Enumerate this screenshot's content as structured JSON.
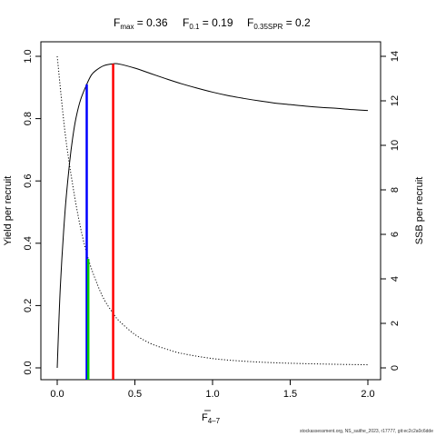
{
  "chart_data": {
    "type": "line",
    "title": {
      "fmax": {
        "base": "F",
        "sub": "max",
        "value": " = 0.36"
      },
      "f01": {
        "base": "F",
        "sub": "0.1",
        "value": " = 0.19"
      },
      "f035": {
        "base": "F",
        "sub": "0.35SPR",
        "value": " = 0.2"
      }
    },
    "xlabel": {
      "base": "F",
      "sub": "4–7"
    },
    "ylabel_left": "Yield per recruit",
    "ylabel_right": "SSB per recruit",
    "xlim": [
      0,
      2
    ],
    "ylim_left": [
      0,
      1
    ],
    "ylim_right": [
      0,
      14
    ],
    "x_ticks": [
      {
        "value": 0,
        "label": "0.0"
      },
      {
        "value": 0.5,
        "label": "0.5"
      },
      {
        "value": 1,
        "label": "1.0"
      },
      {
        "value": 1.5,
        "label": "1.5"
      },
      {
        "value": 2,
        "label": "2.0"
      }
    ],
    "y_ticks_left": [
      {
        "value": 0,
        "label": "0.0"
      },
      {
        "value": 0.2,
        "label": "0.2"
      },
      {
        "value": 0.4,
        "label": "0.4"
      },
      {
        "value": 0.6,
        "label": "0.6"
      },
      {
        "value": 0.8,
        "label": "0.8"
      },
      {
        "value": 1,
        "label": "1.0"
      }
    ],
    "y_ticks_right": [
      {
        "value": 0,
        "label": "0"
      },
      {
        "value": 2,
        "label": "2"
      },
      {
        "value": 4,
        "label": "4"
      },
      {
        "value": 6,
        "label": "6"
      },
      {
        "value": 8,
        "label": "8"
      },
      {
        "value": 10,
        "label": "10"
      },
      {
        "value": 12,
        "label": "12"
      },
      {
        "value": 14,
        "label": "14"
      }
    ],
    "series": [
      {
        "axis": "left",
        "style": "solid",
        "color": "#000000",
        "x": [
          0,
          0.02,
          0.05,
          0.08,
          0.1,
          0.12,
          0.15,
          0.19,
          0.22,
          0.25,
          0.3,
          0.36,
          0.4,
          0.5,
          0.6,
          0.7,
          0.8,
          0.9,
          1.0,
          1.1,
          1.2,
          1.3,
          1.4,
          1.5,
          1.6,
          1.7,
          1.8,
          1.9,
          2.0
        ],
        "values": [
          0.0,
          0.26,
          0.5,
          0.66,
          0.74,
          0.8,
          0.86,
          0.91,
          0.94,
          0.955,
          0.97,
          0.976,
          0.975,
          0.962,
          0.945,
          0.928,
          0.912,
          0.898,
          0.885,
          0.874,
          0.865,
          0.857,
          0.85,
          0.845,
          0.84,
          0.836,
          0.833,
          0.829,
          0.826
        ]
      },
      {
        "axis": "right",
        "style": "dotted",
        "color": "#000000",
        "x": [
          0,
          0.05,
          0.1,
          0.15,
          0.2,
          0.25,
          0.3,
          0.36,
          0.4,
          0.5,
          0.6,
          0.7,
          0.8,
          1.0,
          1.2,
          1.4,
          1.6,
          1.8,
          2.0
        ],
        "values": [
          14.0,
          10.6,
          8.2,
          6.3,
          4.9,
          3.9,
          3.1,
          2.45,
          2.1,
          1.5,
          1.1,
          0.85,
          0.65,
          0.42,
          0.3,
          0.23,
          0.19,
          0.16,
          0.14
        ]
      }
    ],
    "reference_lines": [
      {
        "name": "f01",
        "x": 0.19,
        "ytop": 0.91,
        "axis": "left",
        "color": "#0000ff"
      },
      {
        "name": "f035spr",
        "x": 0.2,
        "ytop": 4.9,
        "axis": "right",
        "color": "#00cc00"
      },
      {
        "name": "fmax",
        "x": 0.36,
        "ytop": 0.976,
        "axis": "left",
        "color": "#ff0000"
      }
    ]
  },
  "credit": "stockassessment.org, NS_saithe_2023, r17777, git:ec2c2a0c6dde"
}
